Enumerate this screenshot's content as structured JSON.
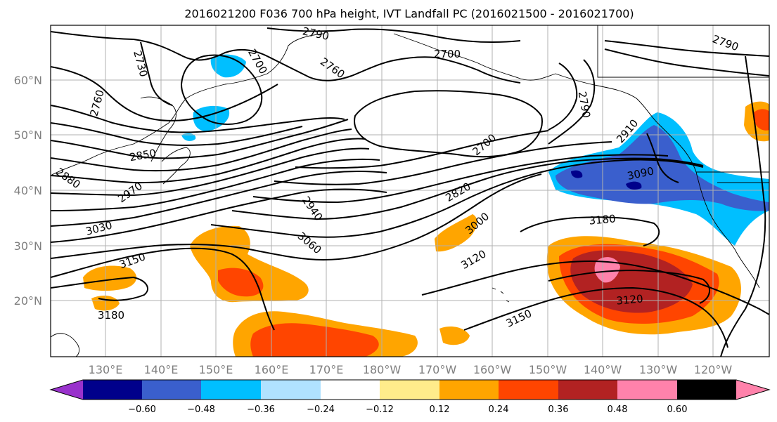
{
  "figure": {
    "title": "2016021200 F036 700 hPa height, IVT Landfall PC (2016021500 - 2016021700)"
  },
  "map": {
    "lat_ticks": [
      "60°N",
      "50°N",
      "40°N",
      "30°N",
      "20°N"
    ],
    "lon_ticks": [
      "130°E",
      "140°E",
      "150°E",
      "160°E",
      "170°E",
      "180°W",
      "170°W",
      "160°W",
      "150°W",
      "140°W",
      "130°W",
      "120°W"
    ],
    "contour_labels": [
      "2790",
      "2700",
      "2730",
      "2760",
      "2700",
      "2760",
      "2790",
      "2790",
      "2850",
      "2880",
      "2970",
      "3030",
      "3150",
      "3180",
      "2910",
      "3090",
      "2700",
      "2820",
      "2940",
      "3060",
      "3000",
      "3120",
      "3180",
      "3150",
      "3120"
    ]
  },
  "colorbar": {
    "colors": [
      "#9932cc",
      "#00008b",
      "#3a5fcd",
      "#00bfff",
      "#b0e2ff",
      "#ffffff",
      "#ffec8b",
      "#ffa500",
      "#ff4500",
      "#b22222",
      "#ff82ab"
    ],
    "tick_labels": [
      "−0.60",
      "−0.48",
      "−0.36",
      "−0.24",
      "−0.12",
      "0.12",
      "0.24",
      "0.36",
      "0.48",
      "0.60"
    ]
  }
}
